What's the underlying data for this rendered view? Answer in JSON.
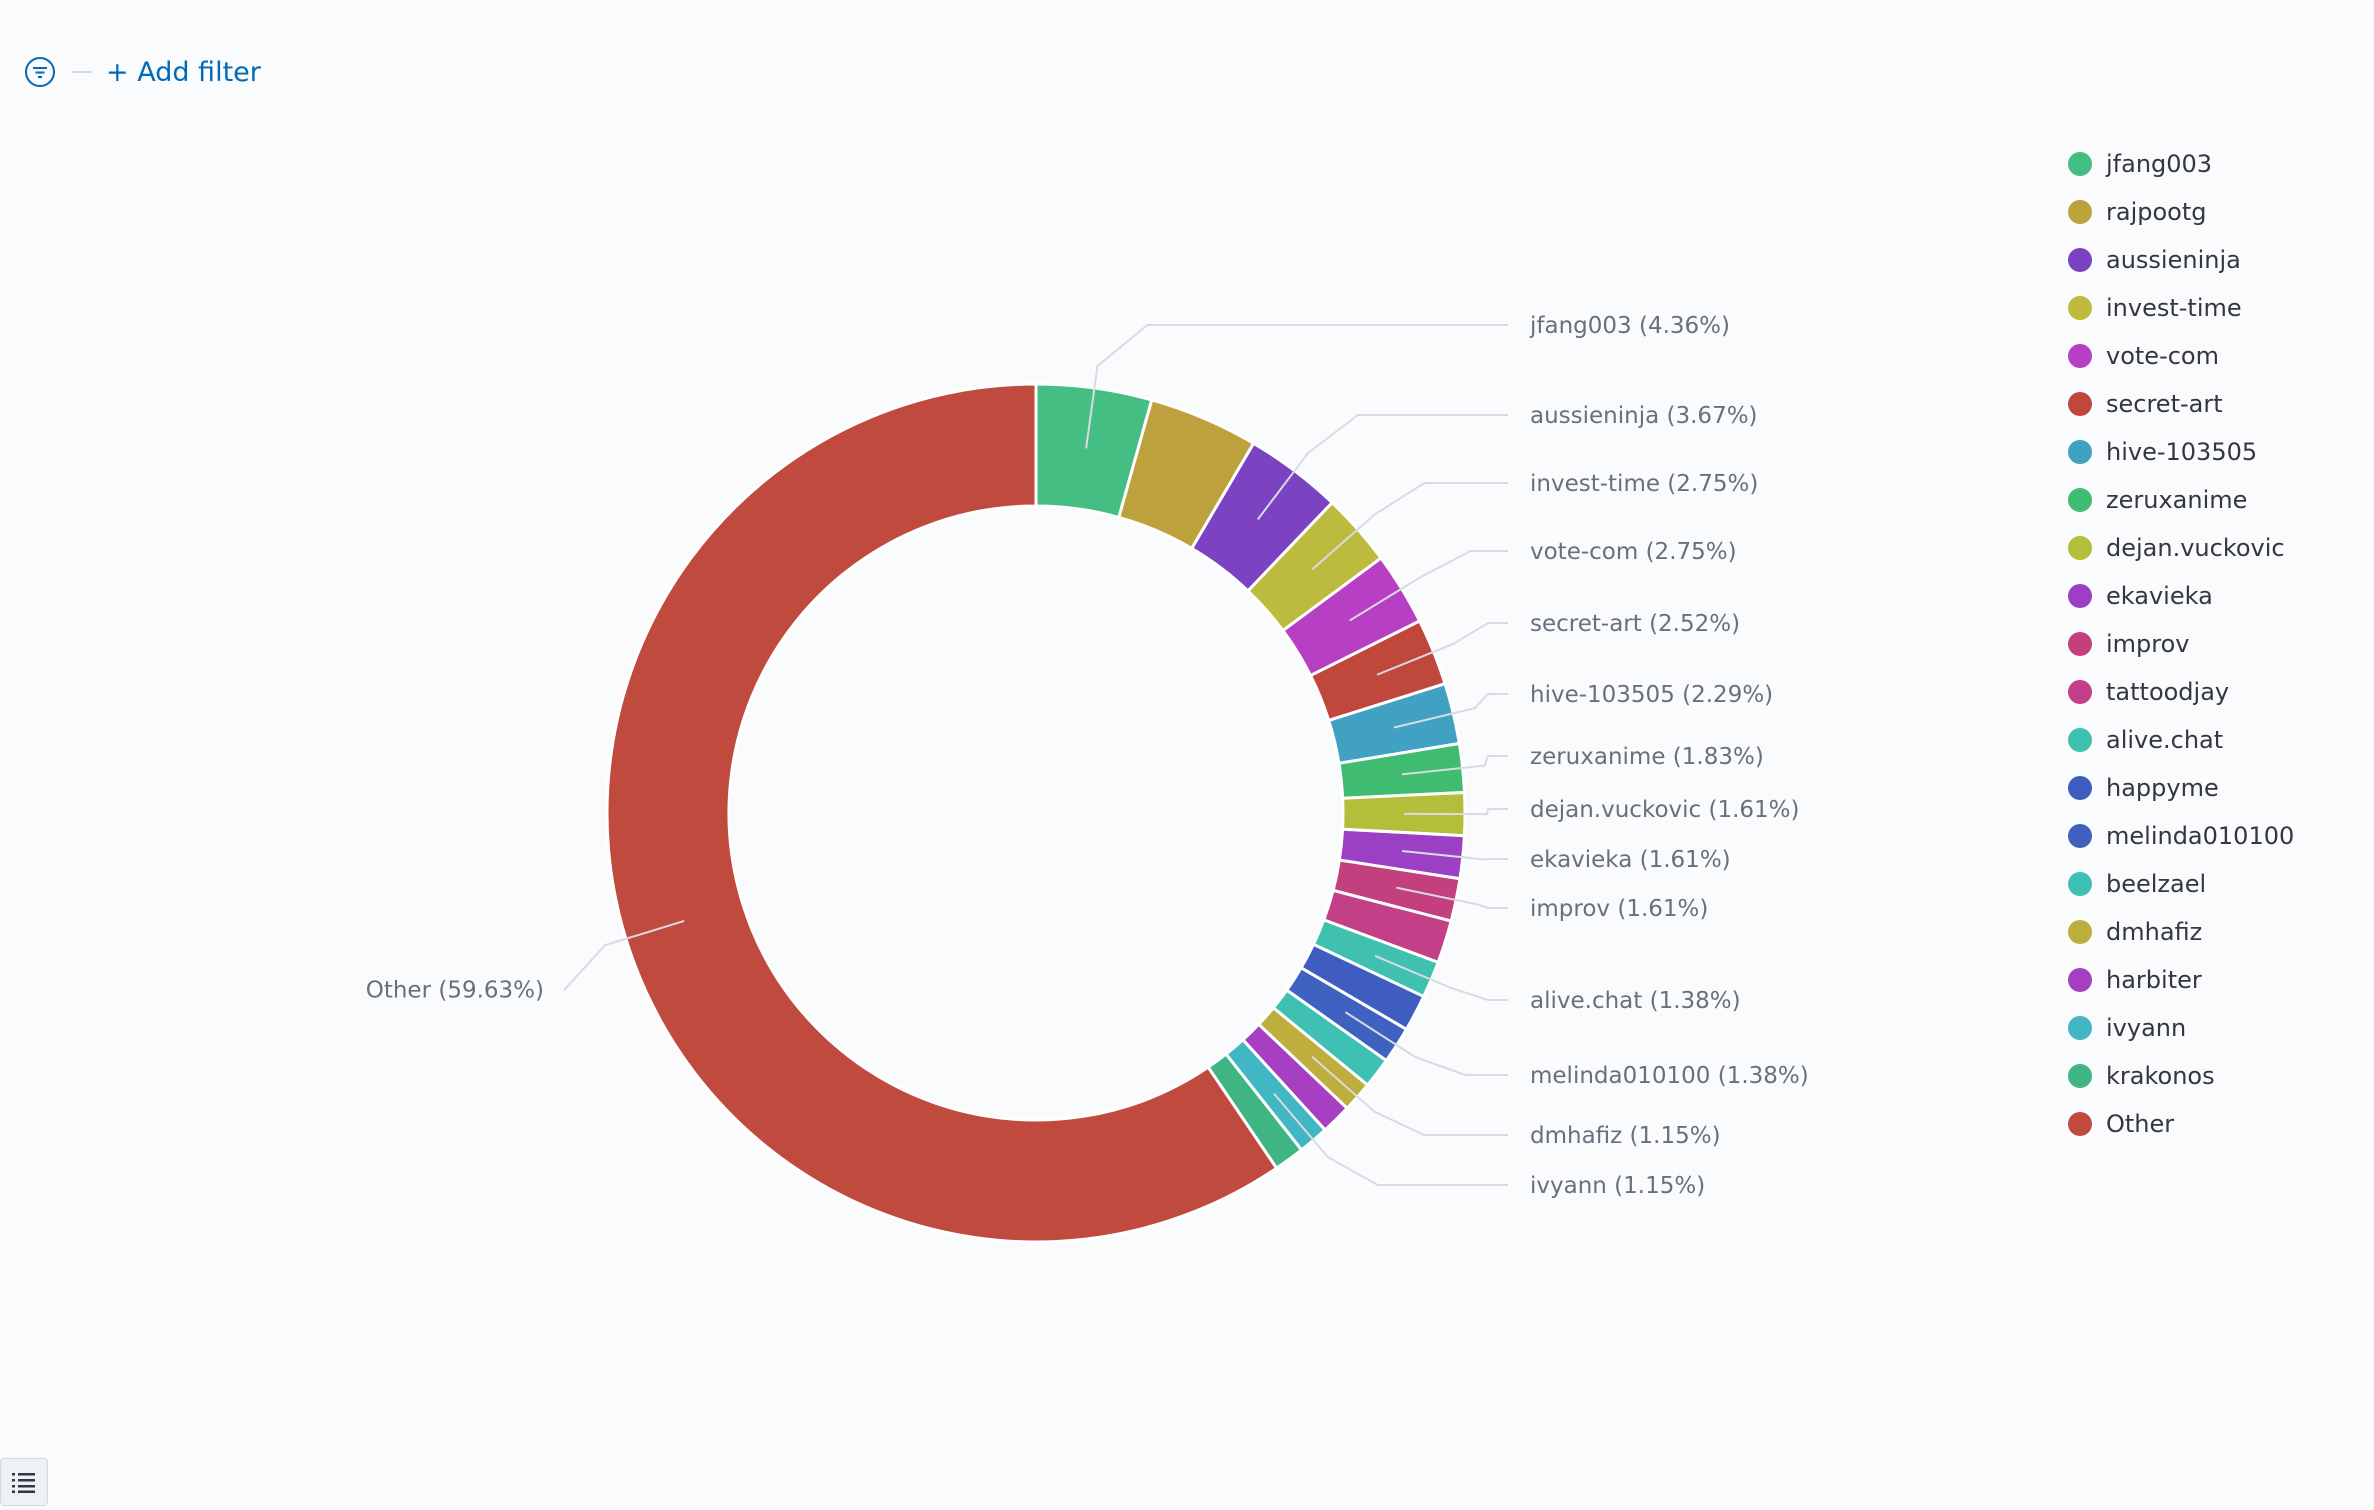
{
  "filter_bar": {
    "add_filter_label": "+ Add filter"
  },
  "chart_data": {
    "type": "pie",
    "donut": true,
    "slices": [
      {
        "label": "jfang003",
        "percent": 4.36,
        "color": "#44be82",
        "callout": true
      },
      {
        "label": "rajpootg",
        "percent": 4.13,
        "color": "#bda13d",
        "callout": false
      },
      {
        "label": "aussieninja",
        "percent": 3.67,
        "color": "#7b42c1",
        "callout": true
      },
      {
        "label": "invest-time",
        "percent": 2.75,
        "color": "#bdbb3e",
        "callout": true
      },
      {
        "label": "vote-com",
        "percent": 2.75,
        "color": "#b63fc4",
        "callout": true
      },
      {
        "label": "secret-art",
        "percent": 2.52,
        "color": "#c0473c",
        "callout": true
      },
      {
        "label": "hive-103505",
        "percent": 2.29,
        "color": "#40a1c3",
        "callout": true
      },
      {
        "label": "zeruxanime",
        "percent": 1.83,
        "color": "#3fbc70",
        "callout": true
      },
      {
        "label": "dejan.vuckovic",
        "percent": 1.61,
        "color": "#b3bf3a",
        "callout": true
      },
      {
        "label": "ekavieka",
        "percent": 1.61,
        "color": "#9b3fc4",
        "callout": true
      },
      {
        "label": "improv",
        "percent": 1.61,
        "color": "#c33f7d",
        "callout": true
      },
      {
        "label": "tattoodjay",
        "percent": 1.61,
        "color": "#c33f88",
        "callout": false
      },
      {
        "label": "alive.chat",
        "percent": 1.38,
        "color": "#40c0af",
        "callout": true
      },
      {
        "label": "happyme",
        "percent": 1.38,
        "color": "#3f5cc0",
        "callout": false
      },
      {
        "label": "melinda010100",
        "percent": 1.38,
        "color": "#3f62c0",
        "callout": true
      },
      {
        "label": "beelzael",
        "percent": 1.15,
        "color": "#3fc0b5",
        "callout": false
      },
      {
        "label": "dmhafiz",
        "percent": 1.15,
        "color": "#bdae3d",
        "callout": true
      },
      {
        "label": "harbiter",
        "percent": 1.15,
        "color": "#a73fc2",
        "callout": false
      },
      {
        "label": "ivyann",
        "percent": 1.15,
        "color": "#40b7c2",
        "callout": true
      },
      {
        "label": "krakonos",
        "percent": 1.15,
        "color": "#3fb584",
        "callout": false
      },
      {
        "label": "Other",
        "percent": 59.63,
        "color": "#c04a3e",
        "callout": true
      }
    ],
    "callout_labels": [
      "jfang003 (4.36%)",
      "aussieninja (3.67%)",
      "invest-time (2.75%)",
      "vote-com (2.75%)",
      "secret-art (2.52%)",
      "hive-103505 (2.29%)",
      "zeruxanime (1.83%)",
      "dejan.vuckovic (1.61%)",
      "ekavieka (1.61%)",
      "improv (1.61%)",
      "alive.chat (1.38%)",
      "melinda010100 (1.38%)",
      "dmhafiz (1.15%)",
      "ivyann (1.15%)",
      "Other (59.63%)"
    ],
    "legend": {
      "position": "right",
      "items": [
        {
          "label": "jfang003",
          "color": "#44be82"
        },
        {
          "label": "rajpootg",
          "color": "#bda13d"
        },
        {
          "label": "aussieninja",
          "color": "#7b42c1"
        },
        {
          "label": "invest-time",
          "color": "#bdbb3e"
        },
        {
          "label": "vote-com",
          "color": "#b63fc4"
        },
        {
          "label": "secret-art",
          "color": "#c0473c"
        },
        {
          "label": "hive-103505",
          "color": "#40a1c3"
        },
        {
          "label": "zeruxanime",
          "color": "#3fbc70"
        },
        {
          "label": "dejan.vuckovic",
          "color": "#b3bf3a"
        },
        {
          "label": "ekavieka",
          "color": "#9b3fc4"
        },
        {
          "label": "improv",
          "color": "#c33f7d"
        },
        {
          "label": "tattoodjay",
          "color": "#c33f88"
        },
        {
          "label": "alive.chat",
          "color": "#40c0af"
        },
        {
          "label": "happyme",
          "color": "#3f5cc0"
        },
        {
          "label": "melinda010100",
          "color": "#3f62c0"
        },
        {
          "label": "beelzael",
          "color": "#3fc0b5"
        },
        {
          "label": "dmhafiz",
          "color": "#bdae3d"
        },
        {
          "label": "harbiter",
          "color": "#a73fc2"
        },
        {
          "label": "ivyann",
          "color": "#40b7c2"
        },
        {
          "label": "krakonos",
          "color": "#3fb584"
        },
        {
          "label": "Other",
          "color": "#c04a3e"
        }
      ]
    }
  }
}
